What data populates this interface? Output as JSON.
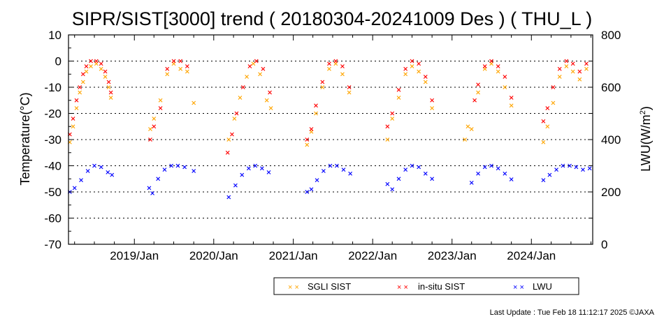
{
  "chart_data": {
    "type": "scatter",
    "title": "SIPR/SIST[3000] trend ( 20180304-20241009 Des ) ( THU_L )",
    "ylabel": "Temperature(°C)",
    "y2label_main": "LWU(W/m",
    "y2label_sup": "2",
    "y2label_end": ")",
    "ylim": [
      -70,
      10
    ],
    "y2lim": [
      0,
      800
    ],
    "xlim": [
      "2018-03-04",
      "2024-10-09"
    ],
    "yticks": [
      "10",
      "0",
      "-10",
      "-20",
      "-30",
      "-40",
      "-50",
      "-60",
      "-70"
    ],
    "y2ticks": [
      "800",
      "600",
      "400",
      "200",
      "0"
    ],
    "xticks": [
      "2019/Jan",
      "2020/Jan",
      "2021/Jan",
      "2022/Jan",
      "2023/Jan",
      "2024/Jan"
    ],
    "grid_lines": [
      0,
      -10,
      -20,
      -30,
      -40,
      -50,
      -60
    ],
    "legend_position": "bottom-right",
    "series": [
      {
        "name": "SGLI SIST",
        "color": "#ffa500",
        "axis": "left",
        "points": [
          [
            "2018-03-10",
            -31
          ],
          [
            "2018-03-25",
            -25
          ],
          [
            "2018-04-10",
            -18
          ],
          [
            "2018-04-25",
            -12
          ],
          [
            "2018-05-10",
            -8
          ],
          [
            "2018-05-25",
            -4
          ],
          [
            "2018-06-15",
            -2
          ],
          [
            "2018-07-10",
            -1
          ],
          [
            "2018-08-01",
            -3
          ],
          [
            "2018-08-20",
            -6
          ],
          [
            "2018-09-05",
            -10
          ],
          [
            "2018-09-15",
            -14
          ],
          [
            "2019-03-15",
            -26
          ],
          [
            "2019-04-01",
            -22
          ],
          [
            "2019-05-01",
            -15
          ],
          [
            "2019-06-01",
            -5
          ],
          [
            "2019-07-01",
            -1
          ],
          [
            "2019-08-01",
            -3
          ],
          [
            "2019-09-01",
            -4
          ],
          [
            "2019-10-01",
            -16
          ],
          [
            "2020-03-10",
            -30
          ],
          [
            "2020-04-05",
            -22
          ],
          [
            "2020-05-01",
            -14
          ],
          [
            "2020-06-01",
            -6
          ],
          [
            "2020-07-01",
            -1
          ],
          [
            "2020-08-01",
            -5
          ],
          [
            "2020-09-01",
            -15
          ],
          [
            "2020-09-20",
            -18
          ],
          [
            "2021-03-05",
            -32
          ],
          [
            "2021-03-25",
            -27
          ],
          [
            "2021-04-15",
            -20
          ],
          [
            "2021-05-15",
            -10
          ],
          [
            "2021-06-15",
            -3
          ],
          [
            "2021-07-15",
            -1
          ],
          [
            "2021-08-15",
            -5
          ],
          [
            "2021-09-15",
            -12
          ],
          [
            "2022-03-10",
            -30
          ],
          [
            "2022-04-01",
            -22
          ],
          [
            "2022-05-01",
            -14
          ],
          [
            "2022-06-01",
            -5
          ],
          [
            "2022-07-01",
            -2
          ],
          [
            "2022-08-01",
            -4
          ],
          [
            "2022-09-01",
            -8
          ],
          [
            "2022-10-01",
            -18
          ],
          [
            "2023-03-01",
            -30
          ],
          [
            "2023-03-15",
            -25
          ],
          [
            "2023-04-01",
            -26
          ],
          [
            "2023-05-01",
            -12
          ],
          [
            "2023-06-01",
            -3
          ],
          [
            "2023-07-01",
            -1
          ],
          [
            "2023-08-01",
            -4
          ],
          [
            "2023-09-01",
            -10
          ],
          [
            "2023-10-01",
            -17
          ],
          [
            "2024-02-25",
            -31
          ],
          [
            "2024-03-15",
            -25
          ],
          [
            "2024-04-10",
            -16
          ],
          [
            "2024-05-10",
            -6
          ],
          [
            "2024-06-10",
            -2
          ],
          [
            "2024-07-10",
            -4
          ],
          [
            "2024-08-10",
            -7
          ],
          [
            "2024-09-10",
            -3
          ]
        ]
      },
      {
        "name": "in-situ SIST",
        "color": "#ff0000",
        "axis": "left",
        "points": [
          [
            "2018-03-10",
            -28
          ],
          [
            "2018-03-25",
            -22
          ],
          [
            "2018-04-10",
            -15
          ],
          [
            "2018-04-25",
            -10
          ],
          [
            "2018-05-10",
            -5
          ],
          [
            "2018-05-25",
            -2
          ],
          [
            "2018-06-15",
            0
          ],
          [
            "2018-07-10",
            0
          ],
          [
            "2018-08-01",
            -1
          ],
          [
            "2018-08-20",
            -4
          ],
          [
            "2018-09-05",
            -8
          ],
          [
            "2018-09-15",
            -12
          ],
          [
            "2019-03-15",
            -30
          ],
          [
            "2019-04-01",
            -25
          ],
          [
            "2019-05-01",
            -18
          ],
          [
            "2019-06-01",
            -3
          ],
          [
            "2019-07-01",
            0
          ],
          [
            "2019-08-01",
            0
          ],
          [
            "2019-09-01",
            -2
          ],
          [
            "2020-03-05",
            -35
          ],
          [
            "2020-03-25",
            -28
          ],
          [
            "2020-04-15",
            -20
          ],
          [
            "2020-05-15",
            -10
          ],
          [
            "2020-06-15",
            -2
          ],
          [
            "2020-07-15",
            0
          ],
          [
            "2020-08-15",
            -3
          ],
          [
            "2020-09-15",
            -12
          ],
          [
            "2021-03-05",
            -30
          ],
          [
            "2021-03-25",
            -26
          ],
          [
            "2021-04-15",
            -17
          ],
          [
            "2021-05-15",
            -8
          ],
          [
            "2021-06-15",
            -1
          ],
          [
            "2021-07-15",
            0
          ],
          [
            "2021-08-15",
            -2
          ],
          [
            "2021-09-15",
            -10
          ],
          [
            "2022-03-10",
            -25
          ],
          [
            "2022-04-01",
            -20
          ],
          [
            "2022-05-01",
            -11
          ],
          [
            "2022-06-01",
            -3
          ],
          [
            "2022-07-01",
            0
          ],
          [
            "2022-08-01",
            -1
          ],
          [
            "2022-09-01",
            -6
          ],
          [
            "2022-10-01",
            -15
          ],
          [
            "2023-04-15",
            -15
          ],
          [
            "2023-05-01",
            -9
          ],
          [
            "2023-06-01",
            -2
          ],
          [
            "2023-07-01",
            0
          ],
          [
            "2023-08-01",
            -2
          ],
          [
            "2023-09-01",
            -6
          ],
          [
            "2023-10-01",
            -14
          ],
          [
            "2024-02-25",
            -23
          ],
          [
            "2024-03-15",
            -18
          ],
          [
            "2024-04-10",
            -10
          ],
          [
            "2024-05-10",
            -3
          ],
          [
            "2024-06-10",
            0
          ],
          [
            "2024-07-10",
            -1
          ],
          [
            "2024-08-10",
            -4
          ],
          [
            "2024-09-10",
            -1
          ]
        ]
      },
      {
        "name": "LWU",
        "color": "#0000ff",
        "axis": "right",
        "points": [
          [
            "2018-03-10",
            200
          ],
          [
            "2018-04-01",
            215
          ],
          [
            "2018-05-01",
            245
          ],
          [
            "2018-06-01",
            280
          ],
          [
            "2018-07-01",
            300
          ],
          [
            "2018-08-01",
            295
          ],
          [
            "2018-09-01",
            275
          ],
          [
            "2018-09-20",
            265
          ],
          [
            "2019-03-10",
            215
          ],
          [
            "2019-03-25",
            195
          ],
          [
            "2019-04-20",
            250
          ],
          [
            "2019-05-20",
            285
          ],
          [
            "2019-06-20",
            300
          ],
          [
            "2019-07-20",
            300
          ],
          [
            "2019-08-20",
            295
          ],
          [
            "2019-10-01",
            280
          ],
          [
            "2020-03-10",
            180
          ],
          [
            "2020-04-10",
            225
          ],
          [
            "2020-05-10",
            265
          ],
          [
            "2020-06-10",
            290
          ],
          [
            "2020-07-10",
            300
          ],
          [
            "2020-08-10",
            290
          ],
          [
            "2020-09-10",
            275
          ],
          [
            "2021-03-05",
            200
          ],
          [
            "2021-03-25",
            210
          ],
          [
            "2021-04-20",
            245
          ],
          [
            "2021-05-20",
            280
          ],
          [
            "2021-06-20",
            300
          ],
          [
            "2021-07-20",
            300
          ],
          [
            "2021-08-20",
            285
          ],
          [
            "2021-09-20",
            270
          ],
          [
            "2022-03-10",
            230
          ],
          [
            "2022-04-01",
            210
          ],
          [
            "2022-05-01",
            250
          ],
          [
            "2022-06-01",
            285
          ],
          [
            "2022-07-01",
            300
          ],
          [
            "2022-08-01",
            295
          ],
          [
            "2022-09-01",
            270
          ],
          [
            "2022-10-01",
            250
          ],
          [
            "2023-04-01",
            235
          ],
          [
            "2023-05-01",
            270
          ],
          [
            "2023-06-01",
            295
          ],
          [
            "2023-07-01",
            300
          ],
          [
            "2023-08-01",
            290
          ],
          [
            "2023-09-01",
            270
          ],
          [
            "2023-10-01",
            248
          ],
          [
            "2024-02-25",
            245
          ],
          [
            "2024-03-25",
            265
          ],
          [
            "2024-04-25",
            285
          ],
          [
            "2024-05-25",
            300
          ],
          [
            "2024-06-25",
            300
          ],
          [
            "2024-07-25",
            295
          ],
          [
            "2024-08-25",
            285
          ],
          [
            "2024-09-25",
            290
          ]
        ]
      }
    ]
  },
  "footer": "Last Update : Tue Feb 18 11:12:17 2025  ©JAXA"
}
